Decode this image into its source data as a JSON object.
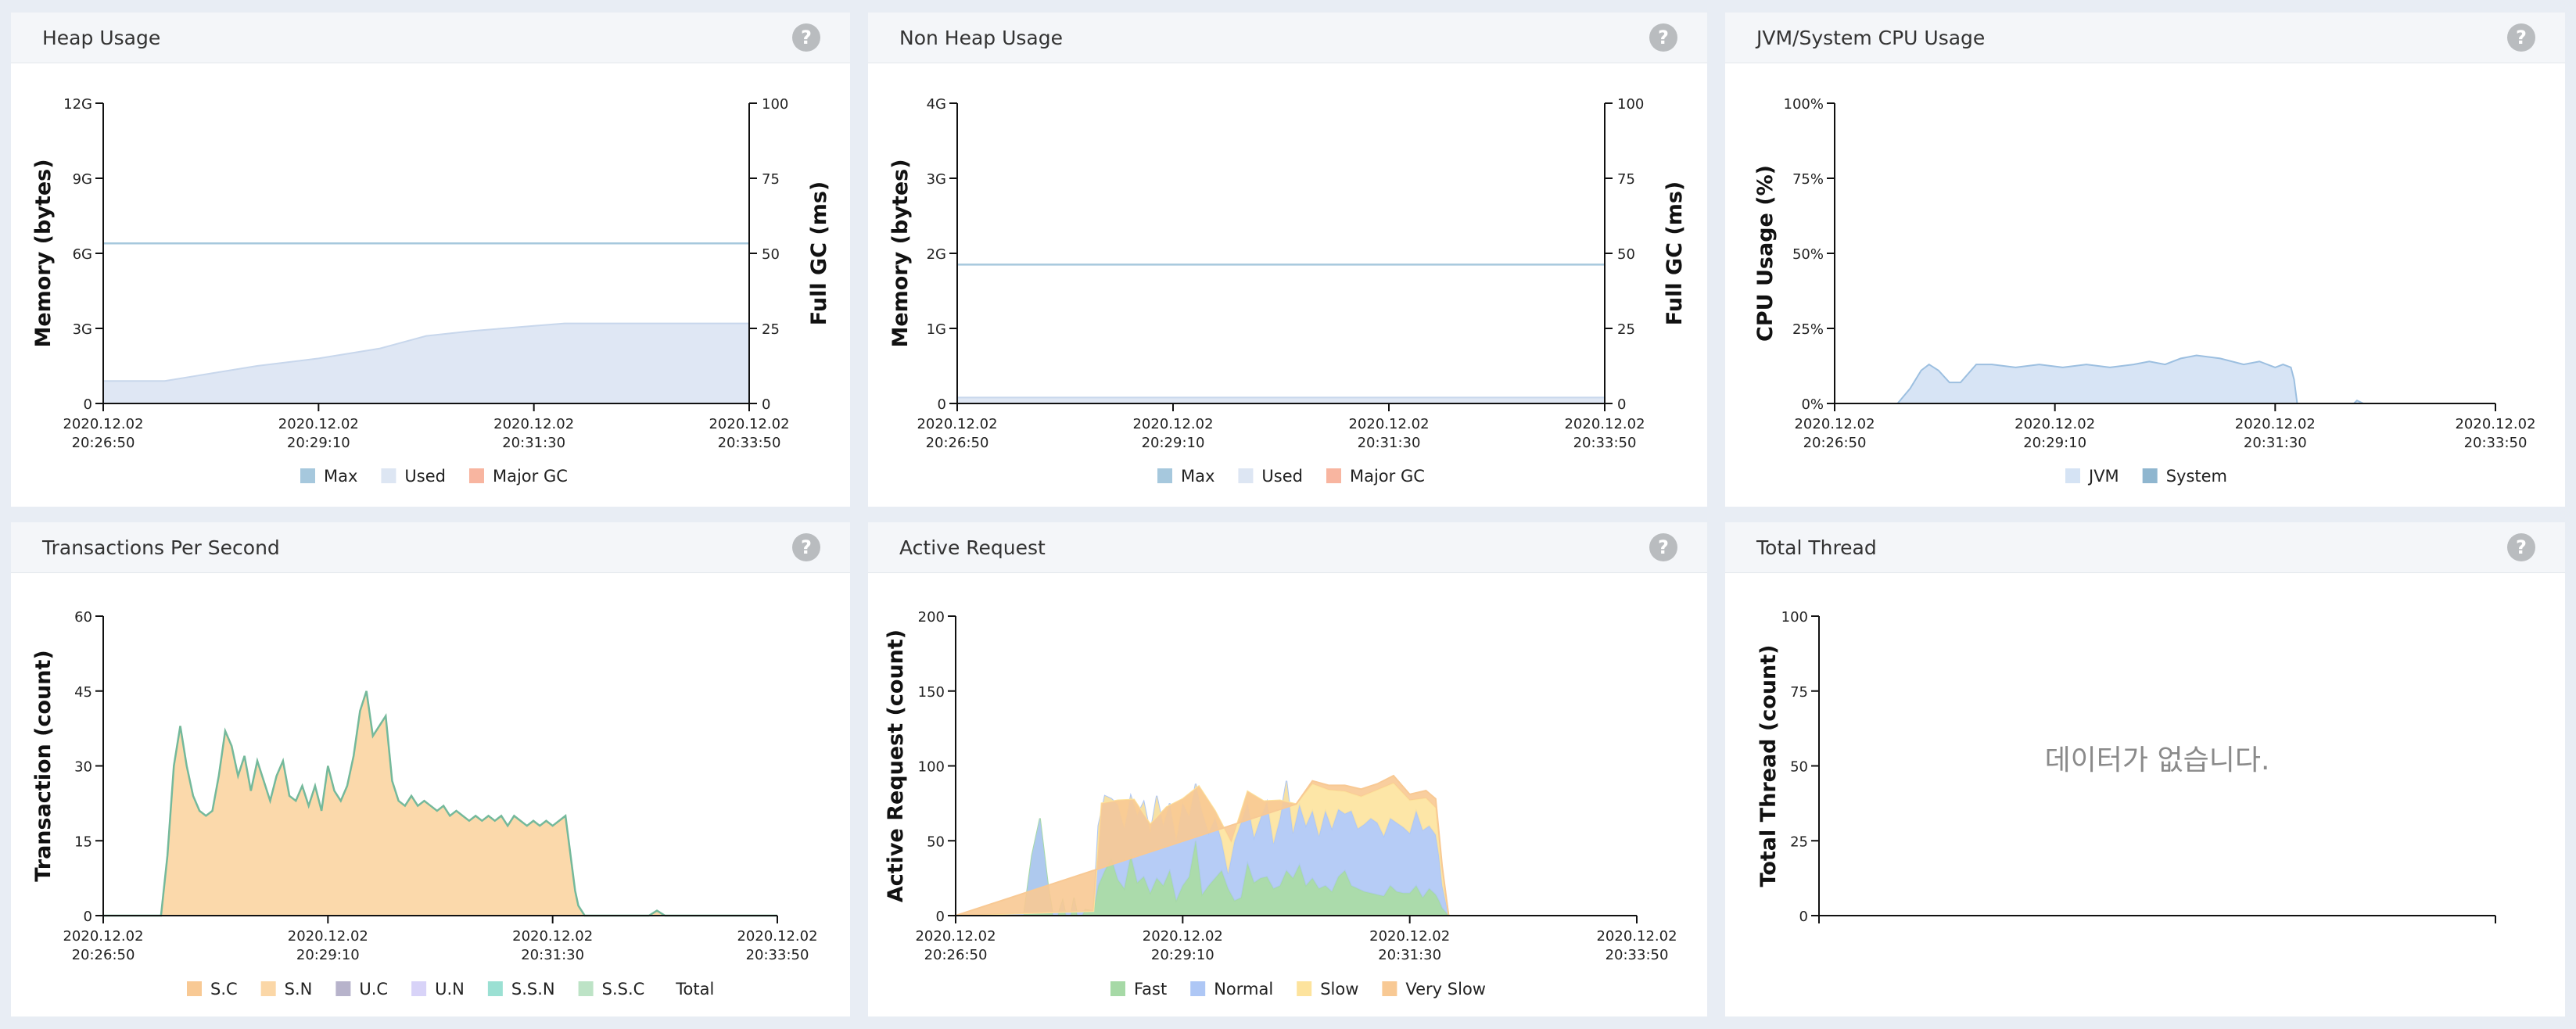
{
  "colors": {
    "max": "#a6c8dd",
    "used": "#dde6f3",
    "majorgc": "#f8b5a0",
    "jvm": "#d5e3f4",
    "system": "#8fb6cf",
    "sc": "#f8c994",
    "sn": "#fbd7a7",
    "uc": "#b7b3cb",
    "un": "#d8d3f8",
    "ssn": "#9be0d3",
    "ssc": "#bde3c6",
    "total": "#74b99b",
    "fast": "#a6d9a6",
    "normal": "#aec7f5",
    "slow": "#fde39d",
    "veryslow": "#f8c994",
    "nodata": "#8a8a8a"
  },
  "panels": [
    {
      "title": "Heap Usage",
      "help": "?"
    },
    {
      "title": "Non Heap Usage",
      "help": "?"
    },
    {
      "title": "JVM/System CPU Usage",
      "help": "?"
    },
    {
      "title": "Transactions Per Second",
      "help": "?"
    },
    {
      "title": "Active Request",
      "help": "?"
    },
    {
      "title": "Total Thread",
      "help": "?"
    }
  ],
  "chart_data": [
    {
      "type": "area",
      "title": "Heap Usage",
      "ylabel": "Memory (bytes)",
      "y2label": "Full GC (ms)",
      "yticks": [
        "0",
        "3G",
        "6G",
        "9G",
        "12G"
      ],
      "y2ticks": [
        "0",
        "25",
        "50",
        "75",
        "100"
      ],
      "ylim": [
        0,
        12
      ],
      "xlim": [
        0,
        420
      ],
      "xticks": [
        {
          "t": 0,
          "label": [
            "2020.12.02",
            "20:26:50"
          ]
        },
        {
          "t": 140,
          "label": [
            "2020.12.02",
            "20:29:10"
          ]
        },
        {
          "t": 280,
          "label": [
            "2020.12.02",
            "20:31:30"
          ]
        },
        {
          "t": 420,
          "label": [
            "2020.12.02",
            "20:33:50"
          ]
        }
      ],
      "series": [
        {
          "name": "Max",
          "kind": "line",
          "color": "max",
          "x": [
            0,
            420
          ],
          "y": [
            6.4,
            6.4
          ]
        },
        {
          "name": "Used",
          "kind": "area",
          "color": "used",
          "x": [
            0,
            40,
            60,
            100,
            140,
            180,
            210,
            240,
            280,
            300,
            340,
            380,
            420
          ],
          "y": [
            0.9,
            0.9,
            1.1,
            1.5,
            1.8,
            2.2,
            2.7,
            2.9,
            3.1,
            3.2,
            3.2,
            3.2,
            3.2
          ]
        },
        {
          "name": "Major GC",
          "kind": "none",
          "color": "majorgc",
          "x": [],
          "y": []
        }
      ],
      "legend": [
        "Max",
        "Used",
        "Major GC"
      ]
    },
    {
      "type": "area",
      "title": "Non Heap Usage",
      "ylabel": "Memory (bytes)",
      "y2label": "Full GC (ms)",
      "yticks": [
        "0",
        "1G",
        "2G",
        "3G",
        "4G"
      ],
      "y2ticks": [
        "0",
        "25",
        "50",
        "75",
        "100"
      ],
      "ylim": [
        0,
        4
      ],
      "xlim": [
        0,
        420
      ],
      "xticks": [
        {
          "t": 0,
          "label": [
            "2020.12.02",
            "20:26:50"
          ]
        },
        {
          "t": 140,
          "label": [
            "2020.12.02",
            "20:29:10"
          ]
        },
        {
          "t": 280,
          "label": [
            "2020.12.02",
            "20:31:30"
          ]
        },
        {
          "t": 420,
          "label": [
            "2020.12.02",
            "20:33:50"
          ]
        }
      ],
      "series": [
        {
          "name": "Max",
          "kind": "line",
          "color": "max",
          "x": [
            0,
            420
          ],
          "y": [
            1.85,
            1.85
          ]
        },
        {
          "name": "Used",
          "kind": "area",
          "color": "used",
          "x": [
            0,
            420
          ],
          "y": [
            0.08,
            0.08
          ]
        },
        {
          "name": "Major GC",
          "kind": "none",
          "color": "majorgc",
          "x": [],
          "y": []
        }
      ],
      "legend": [
        "Max",
        "Used",
        "Major GC"
      ]
    },
    {
      "type": "area",
      "title": "JVM/System CPU Usage",
      "ylabel": "CPU Usage (%)",
      "yticks": [
        "0%",
        "25%",
        "50%",
        "75%",
        "100%"
      ],
      "ylim": [
        0,
        100
      ],
      "xlim": [
        0,
        420
      ],
      "xticks": [
        {
          "t": 0,
          "label": [
            "2020.12.02",
            "20:26:50"
          ]
        },
        {
          "t": 140,
          "label": [
            "2020.12.02",
            "20:29:10"
          ]
        },
        {
          "t": 280,
          "label": [
            "2020.12.02",
            "20:31:30"
          ]
        },
        {
          "t": 420,
          "label": [
            "2020.12.02",
            "20:33:50"
          ]
        }
      ],
      "series": [
        {
          "name": "JVM",
          "kind": "area",
          "color": "jvm",
          "x": [
            0,
            40,
            48,
            55,
            60,
            66,
            73,
            80,
            90,
            100,
            115,
            130,
            145,
            160,
            175,
            190,
            200,
            210,
            220,
            230,
            245,
            260,
            270,
            280,
            285,
            290,
            292,
            294,
            300,
            330,
            332,
            336,
            420
          ],
          "y": [
            0,
            0,
            5,
            11,
            13,
            11,
            7,
            7,
            13,
            13,
            12,
            13,
            12,
            13,
            12,
            13,
            14,
            13,
            15,
            16,
            15,
            13,
            14,
            12,
            13,
            12,
            8,
            0,
            0,
            0,
            1,
            0,
            0
          ]
        },
        {
          "name": "System",
          "kind": "none",
          "color": "system",
          "x": [],
          "y": []
        }
      ],
      "legend": [
        "JVM",
        "System"
      ]
    },
    {
      "type": "area",
      "title": "Transactions Per Second",
      "ylabel": "Transaction (count)",
      "yticks": [
        "0",
        "15",
        "30",
        "45",
        "60"
      ],
      "ylim": [
        0,
        60
      ],
      "xlim": [
        0,
        420
      ],
      "xticks": [
        {
          "t": 0,
          "label": [
            "2020.12.02",
            "20:26:50"
          ]
        },
        {
          "t": 140,
          "label": [
            "2020.12.02",
            "20:29:10"
          ]
        },
        {
          "t": 280,
          "label": [
            "2020.12.02",
            "20:31:30"
          ]
        },
        {
          "t": 420,
          "label": [
            "2020.12.02",
            "20:33:50"
          ]
        }
      ],
      "series": [
        {
          "name": "S.C",
          "kind": "none",
          "color": "sc",
          "x": [],
          "y": []
        },
        {
          "name": "S.N",
          "kind": "area",
          "color": "sn",
          "x": [
            0,
            30,
            36,
            40,
            44,
            48,
            52,
            56,
            60,
            64,
            68,
            72,
            76,
            80,
            84,
            88,
            92,
            96,
            100,
            104,
            108,
            112,
            116,
            120,
            124,
            128,
            132,
            136,
            140,
            144,
            148,
            152,
            156,
            160,
            164,
            168,
            172,
            176,
            180,
            184,
            188,
            192,
            196,
            200,
            204,
            208,
            212,
            216,
            220,
            224,
            228,
            232,
            236,
            240,
            244,
            248,
            252,
            256,
            260,
            264,
            268,
            272,
            276,
            280,
            284,
            288,
            292,
            294,
            296,
            300,
            304,
            306,
            310,
            340,
            345,
            350,
            420
          ],
          "y": [
            0,
            0,
            0,
            12,
            30,
            38,
            30,
            24,
            21,
            20,
            21,
            28,
            37,
            34,
            28,
            32,
            25,
            31,
            27,
            23,
            28,
            31,
            24,
            23,
            26,
            22,
            26,
            21,
            30,
            25,
            23,
            26,
            32,
            41,
            45,
            36,
            38,
            40,
            27,
            23,
            22,
            24,
            22,
            23,
            22,
            21,
            22,
            20,
            21,
            20,
            19,
            20,
            19,
            20,
            19,
            20,
            18,
            20,
            19,
            18,
            19,
            18,
            19,
            18,
            19,
            20,
            10,
            5,
            2,
            0,
            0,
            0,
            0,
            0,
            1,
            0,
            0
          ]
        },
        {
          "name": "U.C",
          "kind": "none",
          "color": "uc",
          "x": [],
          "y": []
        },
        {
          "name": "U.N",
          "kind": "none",
          "color": "un",
          "x": [],
          "y": []
        },
        {
          "name": "S.S.N",
          "kind": "none",
          "color": "ssn",
          "x": [],
          "y": []
        },
        {
          "name": "S.S.C",
          "kind": "none",
          "color": "ssc",
          "x": [],
          "y": []
        },
        {
          "name": "Total",
          "kind": "line",
          "color": "total",
          "ref": "S.N"
        }
      ],
      "legend": [
        "S.C",
        "S.N",
        "U.C",
        "U.N",
        "S.S.N",
        "S.S.C",
        "Total"
      ]
    },
    {
      "type": "area",
      "title": "Active Request",
      "ylabel": "Active Request (count)",
      "yticks": [
        "0",
        "50",
        "100",
        "150",
        "200"
      ],
      "ylim": [
        0,
        200
      ],
      "xlim": [
        0,
        420
      ],
      "xticks": [
        {
          "t": 0,
          "label": [
            "2020.12.02",
            "20:26:50"
          ]
        },
        {
          "t": 140,
          "label": [
            "2020.12.02",
            "20:29:10"
          ]
        },
        {
          "t": 280,
          "label": [
            "2020.12.02",
            "20:31:30"
          ]
        },
        {
          "t": 420,
          "label": [
            "2020.12.02",
            "20:33:50"
          ]
        }
      ],
      "stacked": true,
      "series": [
        {
          "name": "Fast",
          "kind": "area",
          "color": "fast",
          "x": [
            0,
            42,
            47,
            52,
            57,
            60,
            63,
            66,
            68,
            71,
            73,
            75,
            78,
            80,
            85,
            88,
            92,
            96,
            100,
            104,
            108,
            112,
            116,
            120,
            124,
            128,
            132,
            136,
            140,
            144,
            148,
            152,
            156,
            160,
            164,
            168,
            172,
            176,
            180,
            184,
            188,
            192,
            196,
            200,
            204,
            208,
            212,
            216,
            220,
            224,
            228,
            232,
            236,
            240,
            244,
            248,
            252,
            256,
            260,
            264,
            268,
            272,
            276,
            280,
            284,
            288,
            292,
            296,
            298,
            300,
            304,
            420
          ],
          "y": [
            0,
            0,
            40,
            65,
            20,
            0,
            0,
            10,
            0,
            0,
            12,
            0,
            0,
            4,
            3,
            20,
            30,
            38,
            24,
            18,
            40,
            22,
            26,
            15,
            25,
            20,
            30,
            10,
            20,
            26,
            50,
            14,
            20,
            25,
            30,
            18,
            10,
            12,
            35,
            22,
            25,
            26,
            18,
            20,
            30,
            25,
            34,
            20,
            25,
            18,
            20,
            16,
            26,
            30,
            20,
            18,
            16,
            15,
            14,
            13,
            20,
            16,
            15,
            15,
            20,
            12,
            18,
            14,
            10,
            5,
            0,
            0
          ]
        },
        {
          "name": "Normal",
          "kind": "area",
          "color": "normal",
          "x": [
            0,
            85,
            88,
            92,
            96,
            100,
            104,
            108,
            112,
            116,
            120,
            124,
            128,
            132,
            136,
            140,
            144,
            148,
            152,
            156,
            160,
            164,
            168,
            172,
            176,
            180,
            184,
            188,
            192,
            196,
            200,
            204,
            208,
            212,
            216,
            220,
            224,
            228,
            232,
            236,
            240,
            244,
            248,
            252,
            256,
            260,
            264,
            268,
            272,
            276,
            280,
            284,
            288,
            292,
            296,
            298,
            300,
            304,
            420
          ],
          "y": [
            0,
            0,
            40,
            50,
            40,
            50,
            40,
            40,
            45,
            50,
            40,
            55,
            40,
            45,
            40,
            55,
            40,
            38,
            55,
            35,
            40,
            20,
            10,
            40,
            50,
            40,
            30,
            40,
            50,
            30,
            45,
            60,
            30,
            40,
            40,
            45,
            35,
            50,
            42,
            45,
            38,
            50,
            40,
            45,
            50,
            48,
            40,
            45,
            46,
            44,
            40,
            50,
            45,
            42,
            40,
            30,
            15,
            0,
            0
          ]
        },
        {
          "name": "Slow",
          "kind": "area",
          "color": "slow",
          "x": [
            0,
            85,
            90,
            100,
            110,
            120,
            130,
            140,
            150,
            160,
            170,
            180,
            190,
            200,
            210,
            220,
            230,
            240,
            250,
            260,
            270,
            280,
            290,
            296,
            300,
            304,
            420
          ],
          "y": [
            0,
            0,
            5,
            3,
            4,
            6,
            5,
            3,
            8,
            5,
            10,
            8,
            6,
            12,
            10,
            18,
            20,
            15,
            20,
            22,
            25,
            22,
            20,
            18,
            10,
            0,
            0
          ]
        },
        {
          "name": "Very Slow",
          "kind": "area",
          "color": "veryslow",
          "x": [
            0,
            210,
            220,
            230,
            240,
            250,
            260,
            270,
            280,
            290,
            296,
            300,
            304,
            420
          ],
          "y": [
            0,
            0,
            2,
            3,
            4,
            5,
            4,
            5,
            4,
            5,
            6,
            3,
            0,
            0
          ]
        }
      ],
      "legend": [
        "Fast",
        "Normal",
        "Slow",
        "Very Slow"
      ]
    },
    {
      "type": "line",
      "title": "Total Thread",
      "ylabel": "Total Thread (count)",
      "yticks": [
        "0",
        "25",
        "50",
        "75",
        "100"
      ],
      "ylim": [
        0,
        100
      ],
      "xticks": [],
      "series": [],
      "legend": [],
      "nodata": "데이터가 없습니다."
    }
  ]
}
